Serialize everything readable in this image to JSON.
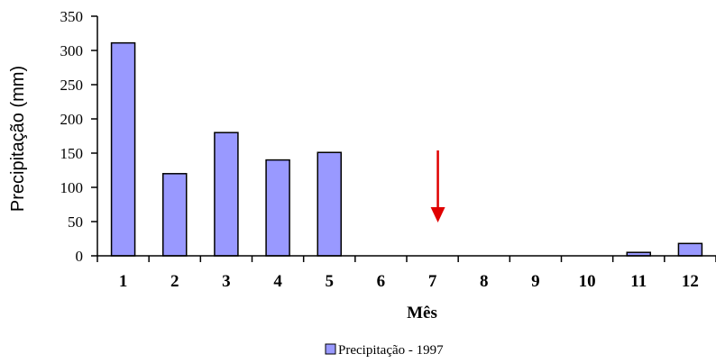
{
  "chart_data": {
    "type": "bar",
    "categories": [
      "1",
      "2",
      "3",
      "4",
      "5",
      "6",
      "7",
      "8",
      "9",
      "10",
      "11",
      "12"
    ],
    "series": [
      {
        "name": "Precipitação - 1997",
        "values": [
          311,
          120,
          180,
          140,
          151,
          0,
          0,
          0,
          0,
          0,
          5,
          18
        ]
      }
    ],
    "xlabel": "Mês",
    "ylabel": "Precipitação (mm)",
    "ylim": [
      0,
      350
    ],
    "yticks": [
      "0",
      "50",
      "100",
      "150",
      "200",
      "250",
      "300",
      "350"
    ],
    "grid": false,
    "legend": "bottom-center",
    "annotation": {
      "type": "arrow",
      "position_month": 7,
      "color": "#e00000"
    },
    "colors": {
      "bar": "#9999ff",
      "bar_stroke": "#000000",
      "arrow": "#e00000"
    }
  }
}
